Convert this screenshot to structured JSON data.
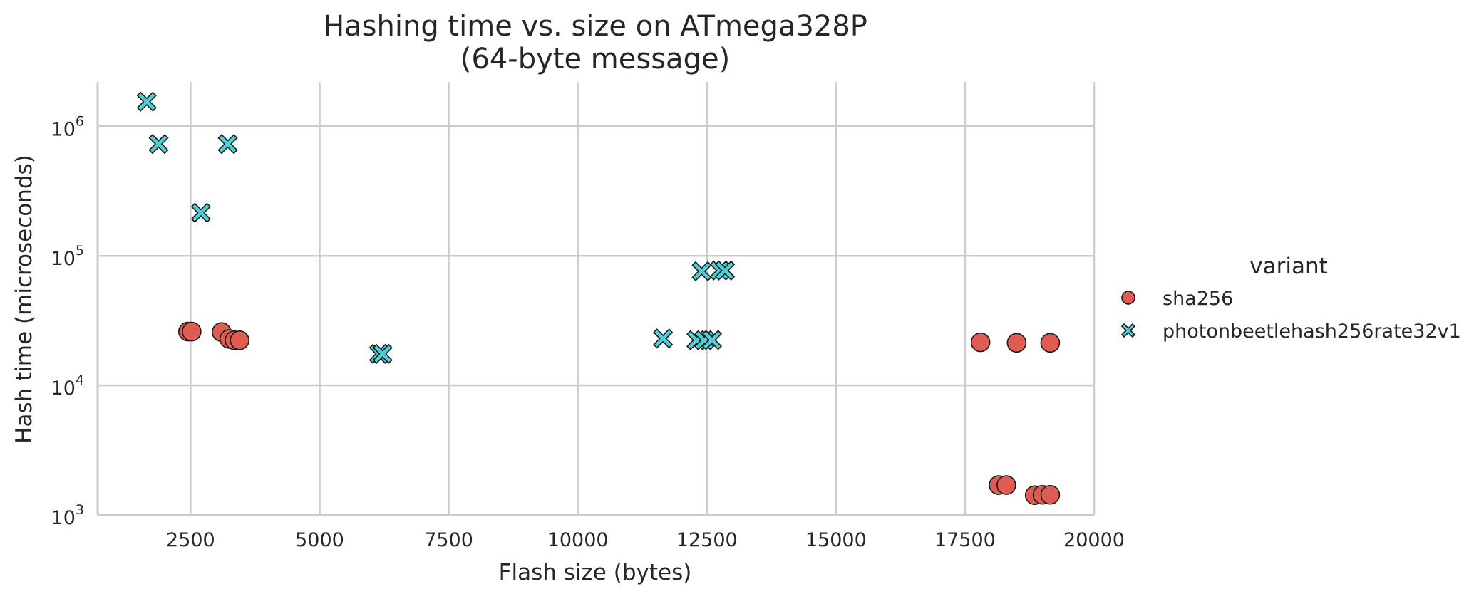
{
  "chart_data": {
    "type": "scatter",
    "title_lines": [
      "Hashing time vs. size on ATmega328P",
      "(64-byte message)"
    ],
    "xlabel": "Flash size (bytes)",
    "ylabel": "Hash time (microseconds)",
    "xlim": [
      700,
      20000
    ],
    "ylim": [
      1000,
      2200000
    ],
    "yscale": "log",
    "grid": true,
    "xticks": [
      2500,
      5000,
      7500,
      10000,
      12500,
      15000,
      17500,
      20000
    ],
    "xtick_labels": [
      "2500",
      "5000",
      "7500",
      "10000",
      "12500",
      "15000",
      "17500",
      "20000"
    ],
    "yticks": [
      {
        "value": 1000,
        "base": "10",
        "exp": "3"
      },
      {
        "value": 10000,
        "base": "10",
        "exp": "4"
      },
      {
        "value": 100000,
        "base": "10",
        "exp": "5"
      },
      {
        "value": 1000000,
        "base": "10",
        "exp": "6"
      }
    ],
    "legend_title": "variant",
    "legend_position": "right",
    "series": [
      {
        "name": "sha256",
        "marker": "circle",
        "color": "#e05c52",
        "points": [
          {
            "x": 2450,
            "y": 26000
          },
          {
            "x": 2520,
            "y": 26000
          },
          {
            "x": 3100,
            "y": 25800
          },
          {
            "x": 3250,
            "y": 22800
          },
          {
            "x": 3350,
            "y": 22300
          },
          {
            "x": 3450,
            "y": 22300
          },
          {
            "x": 17800,
            "y": 21500
          },
          {
            "x": 18500,
            "y": 21300
          },
          {
            "x": 19150,
            "y": 21300
          },
          {
            "x": 18150,
            "y": 1700
          },
          {
            "x": 18300,
            "y": 1700
          },
          {
            "x": 18850,
            "y": 1420
          },
          {
            "x": 19000,
            "y": 1430
          },
          {
            "x": 19150,
            "y": 1430
          }
        ]
      },
      {
        "name": "photonbeetlehash256rate32v1",
        "marker": "x",
        "color": "#4fcfd6",
        "points": [
          {
            "x": 1650,
            "y": 1550000
          },
          {
            "x": 1880,
            "y": 730000
          },
          {
            "x": 3220,
            "y": 730000
          },
          {
            "x": 2700,
            "y": 215000
          },
          {
            "x": 6150,
            "y": 17500
          },
          {
            "x": 6220,
            "y": 17500
          },
          {
            "x": 11650,
            "y": 23000
          },
          {
            "x": 12300,
            "y": 22300
          },
          {
            "x": 12450,
            "y": 22300
          },
          {
            "x": 12600,
            "y": 22400
          },
          {
            "x": 12400,
            "y": 76000
          },
          {
            "x": 12750,
            "y": 77000
          },
          {
            "x": 12850,
            "y": 77000
          }
        ]
      }
    ]
  }
}
